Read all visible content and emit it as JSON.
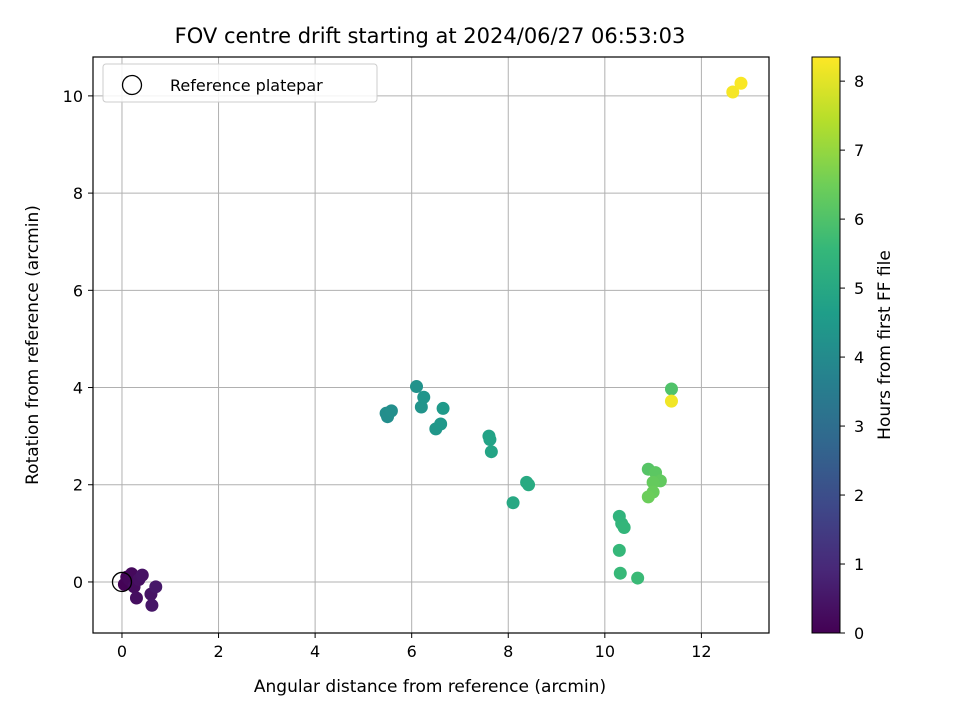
{
  "chart_data": {
    "type": "scatter",
    "title": "FOV centre drift starting at 2024/06/27 06:53:03",
    "xlabel": "Angular distance from reference (arcmin)",
    "ylabel": "Rotation from reference (arcmin)",
    "xlim": [
      -0.6,
      13.4
    ],
    "ylim": [
      -1.05,
      10.8
    ],
    "xticks": [
      0,
      2,
      4,
      6,
      8,
      10,
      12
    ],
    "yticks": [
      0,
      2,
      4,
      6,
      8,
      10
    ],
    "grid": true,
    "legend": {
      "placement": "top-left",
      "entries": [
        "Reference platepar"
      ]
    },
    "reference_point": {
      "x": 0,
      "y": 0,
      "label": "Reference platepar"
    },
    "colorbar": {
      "label": "Hours from first FF file",
      "range": [
        0,
        8.35
      ],
      "ticks": [
        0,
        1,
        2,
        3,
        4,
        5,
        6,
        7,
        8
      ],
      "colormap": "viridis",
      "colors": [
        "#440154",
        "#482878",
        "#3e4989",
        "#31688e",
        "#26828e",
        "#1f9e89",
        "#35b779",
        "#6ece58",
        "#b5de2b",
        "#fde725"
      ]
    },
    "points": [
      {
        "x": 0.05,
        "y": -0.05,
        "h": 0.05
      },
      {
        "x": 0.1,
        "y": 0.1,
        "h": 0.1
      },
      {
        "x": 0.15,
        "y": 0.05,
        "h": 0.15
      },
      {
        "x": 0.2,
        "y": 0.17,
        "h": 0.2
      },
      {
        "x": 0.25,
        "y": -0.1,
        "h": 0.25
      },
      {
        "x": 0.3,
        "y": -0.33,
        "h": 0.3
      },
      {
        "x": 0.35,
        "y": 0.05,
        "h": 0.35
      },
      {
        "x": 0.42,
        "y": 0.14,
        "h": 0.4
      },
      {
        "x": 0.6,
        "y": -0.25,
        "h": 0.45
      },
      {
        "x": 0.62,
        "y": -0.48,
        "h": 0.5
      },
      {
        "x": 0.7,
        "y": -0.1,
        "h": 0.55
      },
      {
        "x": 5.47,
        "y": 3.47,
        "h": 4.1
      },
      {
        "x": 5.5,
        "y": 3.4,
        "h": 4.12
      },
      {
        "x": 5.58,
        "y": 3.52,
        "h": 4.15
      },
      {
        "x": 6.1,
        "y": 4.02,
        "h": 4.25
      },
      {
        "x": 6.2,
        "y": 3.6,
        "h": 4.3
      },
      {
        "x": 6.25,
        "y": 3.8,
        "h": 4.35
      },
      {
        "x": 6.5,
        "y": 3.15,
        "h": 4.4
      },
      {
        "x": 6.6,
        "y": 3.25,
        "h": 4.45
      },
      {
        "x": 6.65,
        "y": 3.57,
        "h": 4.5
      },
      {
        "x": 7.6,
        "y": 3.0,
        "h": 4.8
      },
      {
        "x": 7.62,
        "y": 2.93,
        "h": 4.82
      },
      {
        "x": 7.65,
        "y": 2.68,
        "h": 4.85
      },
      {
        "x": 8.1,
        "y": 1.63,
        "h": 5.0
      },
      {
        "x": 8.38,
        "y": 2.05,
        "h": 5.05
      },
      {
        "x": 8.42,
        "y": 2.0,
        "h": 5.08
      },
      {
        "x": 10.3,
        "y": 1.35,
        "h": 5.4
      },
      {
        "x": 10.35,
        "y": 1.2,
        "h": 5.45
      },
      {
        "x": 10.4,
        "y": 1.12,
        "h": 5.5
      },
      {
        "x": 10.3,
        "y": 0.65,
        "h": 5.55
      },
      {
        "x": 10.32,
        "y": 0.18,
        "h": 5.6
      },
      {
        "x": 10.68,
        "y": 0.08,
        "h": 5.65
      },
      {
        "x": 10.9,
        "y": 2.32,
        "h": 6.1
      },
      {
        "x": 11.05,
        "y": 2.25,
        "h": 6.2
      },
      {
        "x": 11.15,
        "y": 2.08,
        "h": 6.3
      },
      {
        "x": 11.0,
        "y": 2.05,
        "h": 6.35
      },
      {
        "x": 11.0,
        "y": 1.85,
        "h": 6.4
      },
      {
        "x": 10.9,
        "y": 1.75,
        "h": 6.45
      },
      {
        "x": 11.38,
        "y": 3.97,
        "h": 6.0
      },
      {
        "x": 11.38,
        "y": 3.72,
        "h": 8.2
      },
      {
        "x": 12.65,
        "y": 10.08,
        "h": 8.25
      },
      {
        "x": 12.82,
        "y": 10.26,
        "h": 8.3
      }
    ]
  }
}
